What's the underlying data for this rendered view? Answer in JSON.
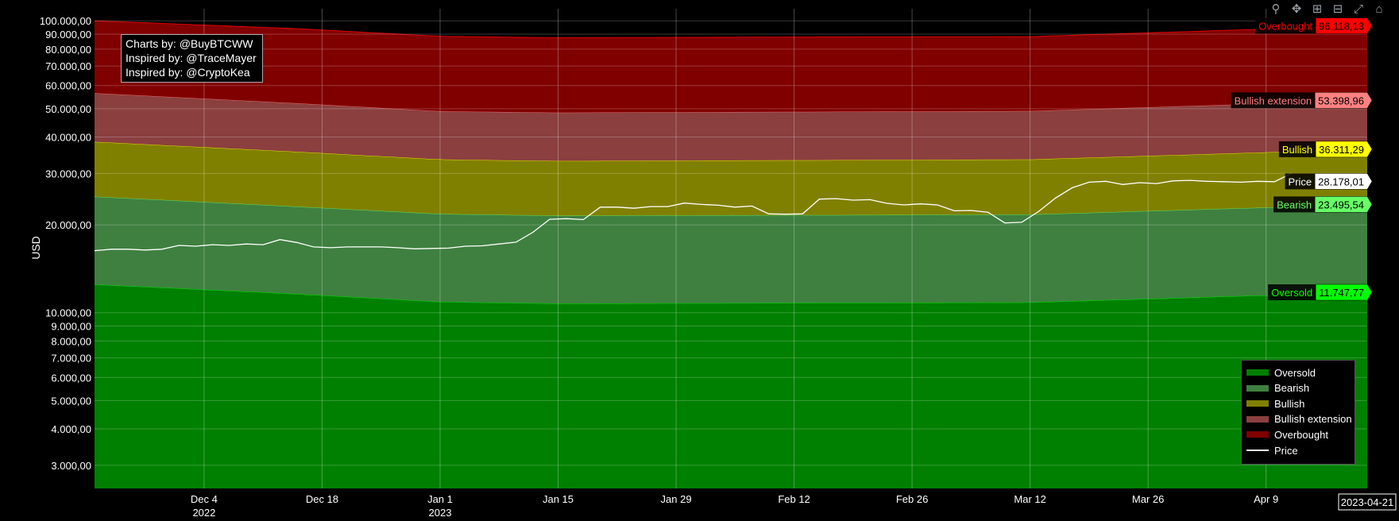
{
  "modebar": {
    "icons": [
      "zoom-icon",
      "pan-icon",
      "zoom-in-icon",
      "zoom-out-icon",
      "autoscale-icon",
      "reset-axes-icon"
    ],
    "glyphs": [
      "⚲",
      "✥",
      "⊞",
      "⊟",
      "⤢",
      "⌂"
    ],
    "color": "#9aa0a6"
  },
  "credits": [
    "Charts by: @BuyBTCWW",
    "Inspired by: @TraceMayer",
    "Inspired by: @CryptoKea"
  ],
  "legend": [
    {
      "key": "oversold",
      "label": "Oversold",
      "color": "#008000",
      "kind": "fill"
    },
    {
      "key": "bearish",
      "label": "Bearish",
      "color": "#3f8040",
      "kind": "fill"
    },
    {
      "key": "bullish",
      "label": "Bullish",
      "color": "#808000",
      "kind": "fill"
    },
    {
      "key": "bullish_ext",
      "label": "Bullish extension",
      "color": "#8b3f3f",
      "kind": "fill"
    },
    {
      "key": "overbought",
      "label": "Overbought",
      "color": "#800000",
      "kind": "fill"
    },
    {
      "key": "price",
      "label": "Price",
      "color": "#ffffff",
      "kind": "line"
    }
  ],
  "chart_data": {
    "type": "area",
    "ylabel": "USD",
    "xlabel": "",
    "y_scale": "log",
    "ylim": [
      2500,
      110000
    ],
    "xlim": [
      "2022-11-21",
      "2023-04-21"
    ],
    "grid": true,
    "legend_position": "bottom-right",
    "y_ticks": [
      {
        "value": 3000,
        "label": "3.000,00"
      },
      {
        "value": 4000,
        "label": "4.000,00"
      },
      {
        "value": 5000,
        "label": "5.000,00"
      },
      {
        "value": 6000,
        "label": "6.000,00"
      },
      {
        "value": 7000,
        "label": "7.000,00"
      },
      {
        "value": 8000,
        "label": "8.000,00"
      },
      {
        "value": 9000,
        "label": "9.000,00"
      },
      {
        "value": 10000,
        "label": "10.000,00"
      },
      {
        "value": 20000,
        "label": "20.000,00"
      },
      {
        "value": 30000,
        "label": "30.000,00"
      },
      {
        "value": 40000,
        "label": "40.000,00"
      },
      {
        "value": 50000,
        "label": "50.000,00"
      },
      {
        "value": 60000,
        "label": "60.000,00"
      },
      {
        "value": 70000,
        "label": "70.000,00"
      },
      {
        "value": 80000,
        "label": "80.000,00"
      },
      {
        "value": 90000,
        "label": "90.000,00"
      },
      {
        "value": 100000,
        "label": "100.000,00"
      }
    ],
    "x_ticks": [
      {
        "date": "2022-12-04",
        "label": "Dec 4",
        "sub": "2022"
      },
      {
        "date": "2022-12-18",
        "label": "Dec 18",
        "sub": ""
      },
      {
        "date": "2023-01-01",
        "label": "Jan 1",
        "sub": "2023"
      },
      {
        "date": "2023-01-15",
        "label": "Jan 15",
        "sub": ""
      },
      {
        "date": "2023-01-29",
        "label": "Jan 29",
        "sub": ""
      },
      {
        "date": "2023-02-12",
        "label": "Feb 12",
        "sub": ""
      },
      {
        "date": "2023-02-26",
        "label": "Feb 26",
        "sub": ""
      },
      {
        "date": "2023-03-12",
        "label": "Mar 12",
        "sub": ""
      },
      {
        "date": "2023-03-26",
        "label": "Mar 26",
        "sub": ""
      },
      {
        "date": "2023-04-09",
        "label": "Apr 9",
        "sub": ""
      }
    ],
    "x_hover_label": "2023-04-21",
    "bands": [
      {
        "name": "Oversold",
        "color": "#008000",
        "line": "#00ff00",
        "last_label": "11.747,77",
        "last_value": 11747.77,
        "x": [
          "2022-11-21",
          "2022-12-15",
          "2023-01-01",
          "2023-01-15",
          "2023-02-12",
          "2023-03-12",
          "2023-04-21"
        ],
        "y": [
          12500,
          11600,
          10900,
          10750,
          10800,
          10850,
          11747.77
        ]
      },
      {
        "name": "Bearish",
        "color": "#3f8040",
        "line": "#66ff66",
        "last_label": "23.495,54",
        "last_value": 23495.54,
        "x": [
          "2022-11-21",
          "2022-12-15",
          "2023-01-01",
          "2023-01-15",
          "2023-02-12",
          "2023-03-12",
          "2023-04-21"
        ],
        "y": [
          25000,
          23100,
          21800,
          21500,
          21600,
          21700,
          23495.54
        ]
      },
      {
        "name": "Bullish",
        "color": "#808000",
        "line": "#ffff00",
        "last_label": "36.311,29",
        "last_value": 36311.29,
        "x": [
          "2022-11-21",
          "2022-12-15",
          "2023-01-01",
          "2023-01-15",
          "2023-02-12",
          "2023-03-12",
          "2023-04-21"
        ],
        "y": [
          38500,
          35600,
          33500,
          33100,
          33300,
          33500,
          36311.29
        ]
      },
      {
        "name": "Bullish extension",
        "color": "#8b3f3f",
        "line": "#ff8080",
        "last_label": "53.398,96",
        "last_value": 53398.96,
        "x": [
          "2022-11-21",
          "2022-12-15",
          "2023-01-01",
          "2023-01-15",
          "2023-02-12",
          "2023-03-12",
          "2023-04-21"
        ],
        "y": [
          56500,
          52200,
          49000,
          48500,
          48800,
          49100,
          53398.96
        ]
      },
      {
        "name": "Overbought",
        "color": "#800000",
        "line": "#ff0000",
        "last_label": "96.118,13",
        "last_value": 96118.13,
        "x": [
          "2022-11-21",
          "2022-12-15",
          "2023-01-01",
          "2023-01-15",
          "2023-02-12",
          "2023-03-12",
          "2023-04-21"
        ],
        "y": [
          100000,
          94000,
          88500,
          87500,
          88000,
          88300,
          96118.13
        ]
      }
    ],
    "price": {
      "name": "Price",
      "color": "#ffffff",
      "last_label": "28.178,01",
      "last_value": 28178.01,
      "x": [
        "2022-11-21",
        "2022-11-23",
        "2022-11-25",
        "2022-11-27",
        "2022-11-29",
        "2022-12-01",
        "2022-12-03",
        "2022-12-05",
        "2022-12-07",
        "2022-12-09",
        "2022-12-11",
        "2022-12-13",
        "2022-12-15",
        "2022-12-17",
        "2022-12-19",
        "2022-12-21",
        "2022-12-23",
        "2022-12-25",
        "2022-12-27",
        "2022-12-29",
        "2022-12-31",
        "2023-01-02",
        "2023-01-04",
        "2023-01-06",
        "2023-01-08",
        "2023-01-10",
        "2023-01-12",
        "2023-01-14",
        "2023-01-16",
        "2023-01-18",
        "2023-01-20",
        "2023-01-22",
        "2023-01-24",
        "2023-01-26",
        "2023-01-28",
        "2023-01-30",
        "2023-02-01",
        "2023-02-03",
        "2023-02-05",
        "2023-02-07",
        "2023-02-09",
        "2023-02-11",
        "2023-02-13",
        "2023-02-15",
        "2023-02-17",
        "2023-02-19",
        "2023-02-21",
        "2023-02-23",
        "2023-02-25",
        "2023-02-27",
        "2023-03-01",
        "2023-03-03",
        "2023-03-05",
        "2023-03-07",
        "2023-03-09",
        "2023-03-11",
        "2023-03-13",
        "2023-03-15",
        "2023-03-17",
        "2023-03-19",
        "2023-03-21",
        "2023-03-23",
        "2023-03-25",
        "2023-03-27",
        "2023-03-29",
        "2023-03-31",
        "2023-04-02",
        "2023-04-04",
        "2023-04-06",
        "2023-04-08",
        "2023-04-10",
        "2023-04-12"
      ],
      "y": [
        16300,
        16500,
        16500,
        16400,
        16500,
        17000,
        16900,
        17100,
        17000,
        17200,
        17100,
        17800,
        17400,
        16800,
        16700,
        16800,
        16800,
        16800,
        16700,
        16550,
        16600,
        16650,
        16900,
        16950,
        17200,
        17450,
        18850,
        20900,
        21000,
        20850,
        23000,
        23000,
        22800,
        23100,
        23100,
        23750,
        23500,
        23350,
        23000,
        23200,
        21800,
        21750,
        21800,
        24500,
        24600,
        24300,
        24400,
        23700,
        23400,
        23600,
        23400,
        22350,
        22400,
        22100,
        20300,
        20400,
        22200,
        24700,
        26800,
        28000,
        28200,
        27500,
        27900,
        27700,
        28300,
        28400,
        28200,
        28100,
        28000,
        28200,
        28100,
        30000
      ]
    }
  }
}
